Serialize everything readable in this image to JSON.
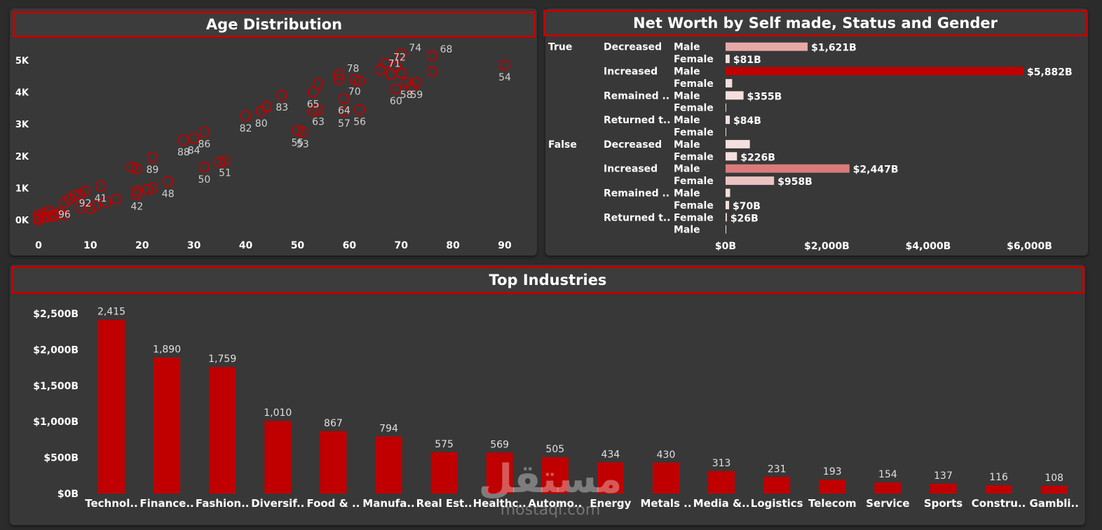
{
  "colors": {
    "accent": "#c00000",
    "panel": "#383838",
    "bg": "#2b2b2b"
  },
  "age_panel": {
    "title": "Age Distribution"
  },
  "networth_panel": {
    "title": "Net Worth by Self made, Status and Gender"
  },
  "industry_panel": {
    "title": "Top Industries"
  },
  "watermark": {
    "arabic": "مستقل",
    "latin": "mostaql.com"
  },
  "chart_data": [
    {
      "type": "scatter",
      "title": "Age Distribution",
      "xlim": [
        0,
        95
      ],
      "ylim": [
        0,
        5300
      ],
      "x_ticks": [
        0,
        10,
        20,
        30,
        40,
        50,
        60,
        70,
        80,
        90
      ],
      "y_ticks": [
        {
          "v": 0,
          "label": "0K"
        },
        {
          "v": 1000,
          "label": "1K"
        },
        {
          "v": 2000,
          "label": "2K"
        },
        {
          "v": 3000,
          "label": "3K"
        },
        {
          "v": 4000,
          "label": "4K"
        },
        {
          "v": 5000,
          "label": "5K"
        }
      ],
      "points": [
        {
          "x": 0,
          "y": 0
        },
        {
          "x": 0,
          "y": 60
        },
        {
          "x": 0,
          "y": 150
        },
        {
          "x": 1,
          "y": 80
        },
        {
          "x": 1,
          "y": 200
        },
        {
          "x": 2,
          "y": 100
        },
        {
          "x": 2,
          "y": 280
        },
        {
          "x": 3,
          "y": 160
        },
        {
          "x": 3,
          "y": 120
        },
        {
          "x": 4,
          "y": 220
        },
        {
          "x": 5,
          "y": 150
        },
        {
          "x": 5,
          "y": 550,
          "label": "96"
        },
        {
          "x": 6,
          "y": 650
        },
        {
          "x": 7,
          "y": 750
        },
        {
          "x": 8,
          "y": 800
        },
        {
          "x": 9,
          "y": 900,
          "label": "92"
        },
        {
          "x": 8,
          "y": 380
        },
        {
          "x": 10,
          "y": 350
        },
        {
          "x": 11,
          "y": 450
        },
        {
          "x": 12,
          "y": 1050,
          "label": "41"
        },
        {
          "x": 13,
          "y": 550
        },
        {
          "x": 15,
          "y": 650
        },
        {
          "x": 18,
          "y": 1650
        },
        {
          "x": 19,
          "y": 1600
        },
        {
          "x": 19,
          "y": 800,
          "label": "42"
        },
        {
          "x": 19,
          "y": 900
        },
        {
          "x": 21,
          "y": 950
        },
        {
          "x": 22,
          "y": 1000
        },
        {
          "x": 22,
          "y": 1950,
          "label": "89"
        },
        {
          "x": 25,
          "y": 1200,
          "label": "48"
        },
        {
          "x": 28,
          "y": 2500,
          "label": "88"
        },
        {
          "x": 30,
          "y": 2550,
          "label": "84"
        },
        {
          "x": 32,
          "y": 2750,
          "label": "86"
        },
        {
          "x": 32,
          "y": 1650,
          "label": "50"
        },
        {
          "x": 35,
          "y": 1800
        },
        {
          "x": 36,
          "y": 1850,
          "label": "51"
        },
        {
          "x": 40,
          "y": 3250,
          "label": "82"
        },
        {
          "x": 43,
          "y": 3400,
          "label": "80"
        },
        {
          "x": 44,
          "y": 3550
        },
        {
          "x": 47,
          "y": 3900,
          "label": "83"
        },
        {
          "x": 50,
          "y": 2800,
          "label": "55"
        },
        {
          "x": 51,
          "y": 2750,
          "label": "53"
        },
        {
          "x": 53,
          "y": 4000,
          "label": "65"
        },
        {
          "x": 53,
          "y": 3400
        },
        {
          "x": 54,
          "y": 3450,
          "label": "63"
        },
        {
          "x": 54,
          "y": 4250
        },
        {
          "x": 58,
          "y": 4400
        },
        {
          "x": 58,
          "y": 4550,
          "label": "78"
        },
        {
          "x": 59,
          "y": 3800,
          "label": "64"
        },
        {
          "x": 59,
          "y": 3400,
          "label": "57"
        },
        {
          "x": 61,
          "y": 4400,
          "label": "70"
        },
        {
          "x": 62,
          "y": 4350
        },
        {
          "x": 62,
          "y": 3450,
          "label": "56"
        },
        {
          "x": 66,
          "y": 4700,
          "label": "71"
        },
        {
          "x": 67,
          "y": 4900,
          "label": "72"
        },
        {
          "x": 68,
          "y": 4550
        },
        {
          "x": 69,
          "y": 4100,
          "label": "60"
        },
        {
          "x": 69,
          "y": 4800
        },
        {
          "x": 70,
          "y": 5200,
          "label": "74"
        },
        {
          "x": 70,
          "y": 4600
        },
        {
          "x": 71,
          "y": 4300,
          "label": "58"
        },
        {
          "x": 72,
          "y": 4150
        },
        {
          "x": 73,
          "y": 4300,
          "label": "59"
        },
        {
          "x": 76,
          "y": 4650
        },
        {
          "x": 76,
          "y": 5150,
          "label": "68"
        },
        {
          "x": 90,
          "y": 4850,
          "label": "54"
        }
      ]
    },
    {
      "type": "bar",
      "title": "Net Worth by Self made, Status and Gender",
      "orientation": "horizontal",
      "xlim": [
        0,
        6500
      ],
      "x_ticks": [
        {
          "v": 0,
          "label": "$0B"
        },
        {
          "v": 2000,
          "label": "$2,000B"
        },
        {
          "v": 4000,
          "label": "$4,000B"
        },
        {
          "v": 6000,
          "label": "$6,000B"
        }
      ],
      "rows": [
        {
          "self_made": "True",
          "status": "Decreased",
          "gender": "Male",
          "value": 1621,
          "label": "$1,621B",
          "color": "#e8a8a8"
        },
        {
          "self_made": "",
          "status": "",
          "gender": "Female",
          "value": 81,
          "label": "$81B",
          "color": "#f4dede"
        },
        {
          "self_made": "",
          "status": "Increased",
          "gender": "Male",
          "value": 5882,
          "label": "$5,882B",
          "color": "#c00000"
        },
        {
          "self_made": "",
          "status": "",
          "gender": "Female",
          "value": 130,
          "label": "",
          "color": "#f4dede"
        },
        {
          "self_made": "",
          "status": "Remained ..",
          "gender": "Male",
          "value": 355,
          "label": "$355B",
          "color": "#f4dede"
        },
        {
          "self_made": "",
          "status": "",
          "gender": "Female",
          "value": 10,
          "label": "",
          "color": "#f4dede"
        },
        {
          "self_made": "",
          "status": "Returned t..",
          "gender": "Male",
          "value": 84,
          "label": "$84B",
          "color": "#f4dede"
        },
        {
          "self_made": "",
          "status": "",
          "gender": "Female",
          "value": 5,
          "label": "",
          "color": "#f4dede"
        },
        {
          "self_made": "False",
          "status": "Decreased",
          "gender": "Male",
          "value": 480,
          "label": "",
          "color": "#f4dede"
        },
        {
          "self_made": "",
          "status": "",
          "gender": "Female",
          "value": 226,
          "label": "$226B",
          "color": "#f4dede"
        },
        {
          "self_made": "",
          "status": "Increased",
          "gender": "Male",
          "value": 2447,
          "label": "$2,447B",
          "color": "#d97b7b"
        },
        {
          "self_made": "",
          "status": "",
          "gender": "Female",
          "value": 958,
          "label": "$958B",
          "color": "#ecc3c3"
        },
        {
          "self_made": "",
          "status": "Remained ..",
          "gender": "Male",
          "value": 90,
          "label": "",
          "color": "#f4dede"
        },
        {
          "self_made": "",
          "status": "",
          "gender": "Female",
          "value": 70,
          "label": "$70B",
          "color": "#f4dede"
        },
        {
          "self_made": "",
          "status": "Returned t..",
          "gender": "Female",
          "value": 26,
          "label": "$26B",
          "color": "#f4dede"
        },
        {
          "self_made": "",
          "status": "",
          "gender": "Male",
          "value": 5,
          "label": "",
          "color": "#f4dede"
        }
      ]
    },
    {
      "type": "bar",
      "title": "Top Industries",
      "ylim": [
        0,
        2650
      ],
      "y_ticks": [
        {
          "v": 0,
          "label": "$0B"
        },
        {
          "v": 500,
          "label": "$500B"
        },
        {
          "v": 1000,
          "label": "$1,000B"
        },
        {
          "v": 1500,
          "label": "$1,500B"
        },
        {
          "v": 2000,
          "label": "$2,000B"
        },
        {
          "v": 2500,
          "label": "$2,500B"
        }
      ],
      "categories": [
        "Technol..",
        "Finance..",
        "Fashion..",
        "Diversif..",
        "Food & ..",
        "Manufa..",
        "Real Est..",
        "Healthc..",
        "Automo..",
        "Energy",
        "Metals ..",
        "Media &..",
        "Logistics",
        "Telecom",
        "Service",
        "Sports",
        "Constru..",
        "Gambli.."
      ],
      "values": [
        2415,
        1890,
        1759,
        1010,
        867,
        794,
        575,
        569,
        505,
        434,
        430,
        313,
        231,
        193,
        154,
        137,
        116,
        108
      ],
      "value_labels": [
        "2,415",
        "1,890",
        "1,759",
        "1,010",
        "867",
        "794",
        "575",
        "569",
        "505",
        "434",
        "430",
        "313",
        "231",
        "193",
        "154",
        "137",
        "116",
        "108"
      ]
    }
  ]
}
